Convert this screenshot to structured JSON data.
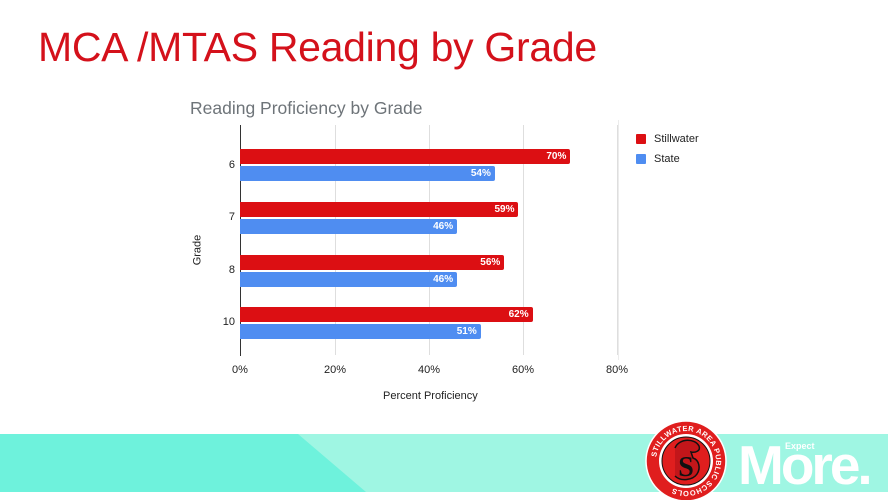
{
  "slide": {
    "title": "MCA /MTAS Reading by Grade"
  },
  "chart_data": {
    "type": "bar",
    "orientation": "horizontal",
    "title": "Reading Proficiency by Grade",
    "xlabel": "Percent Proficiency",
    "ylabel": "Grade",
    "categories": [
      "6",
      "7",
      "8",
      "10"
    ],
    "series": [
      {
        "name": "Stillwater",
        "color": "#dc0f13",
        "values": [
          70,
          59,
          56,
          62
        ],
        "labels": [
          "70%",
          "59%",
          "56%",
          "62%"
        ]
      },
      {
        "name": "State",
        "color": "#4f8df1",
        "values": [
          54,
          46,
          46,
          51
        ],
        "labels": [
          "54%",
          "46%",
          "46%",
          "51%"
        ]
      }
    ],
    "xlim": [
      0,
      80
    ],
    "x_ticks": [
      "0%",
      "20%",
      "40%",
      "60%",
      "80%"
    ],
    "grid": true,
    "legend_position": "right",
    "legend": [
      "Stillwater",
      "State"
    ]
  },
  "footer": {
    "logo_text": "STILLWATER AREA PUBLIC SCHOOLS",
    "logo_letter": "S",
    "brand_small": "Expect",
    "brand_large": "More.",
    "colors": {
      "band_light": "#9ff6e3",
      "band_dark": "#6ef2dc",
      "logo_red": "#e01e1e"
    }
  }
}
